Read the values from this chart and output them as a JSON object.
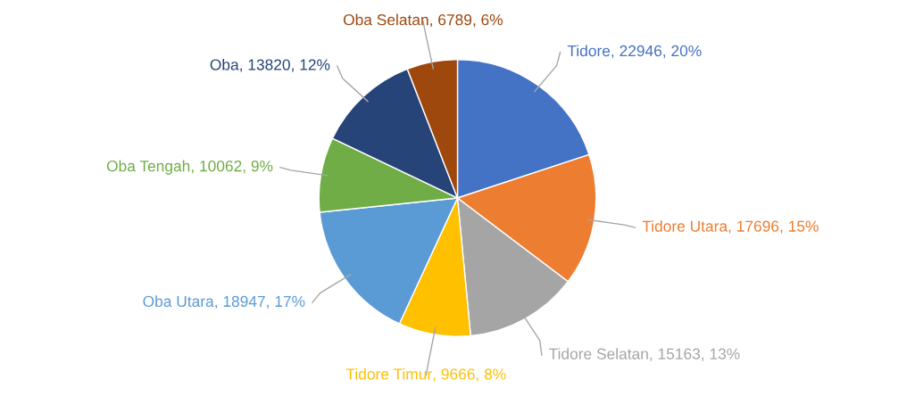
{
  "chart_data": {
    "type": "pie",
    "categories": [
      "Tidore",
      "Tidore Utara",
      "Tidore Selatan",
      "Tidore Timur",
      "Oba Utara",
      "Oba Tengah",
      "Oba",
      "Oba Selatan"
    ],
    "values": [
      22946,
      17696,
      15163,
      9666,
      18947,
      10062,
      13820,
      6789
    ],
    "colors": [
      "#4472c4",
      "#ed7d31",
      "#a5a5a5",
      "#ffc000",
      "#5b9bd5",
      "#70ad47",
      "#264478",
      "#9e480e"
    ],
    "value_labels": [
      ", 22946, 20%",
      ", 17696, 15%",
      ", 15163, 13%",
      ", 9666, 8%",
      ", 18947, 17%",
      ", 10062, 9%",
      ", 13820, 12%",
      ", 6789, 6%"
    ],
    "legend": false
  }
}
